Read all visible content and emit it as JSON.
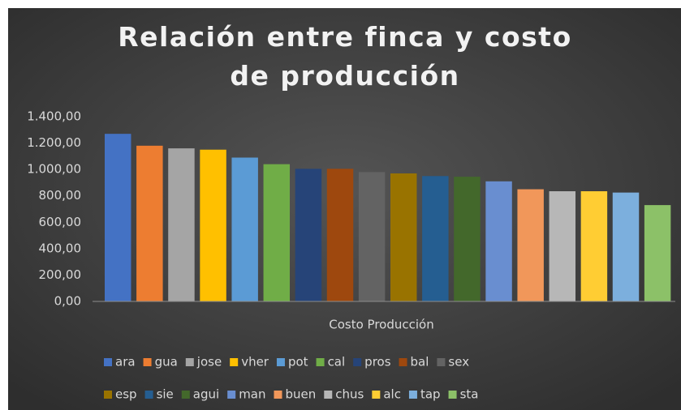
{
  "chart_data": {
    "type": "bar",
    "title": "Relación entre finca y costo de producción",
    "categories": [
      "Costo Producción"
    ],
    "series": [
      {
        "name": "ara",
        "color": "#4472c4",
        "values": [
          1270
        ]
      },
      {
        "name": "gua",
        "color": "#ed7d31",
        "values": [
          1180
        ]
      },
      {
        "name": "jose",
        "color": "#a5a5a5",
        "values": [
          1160
        ]
      },
      {
        "name": "vher",
        "color": "#ffc000",
        "values": [
          1150
        ]
      },
      {
        "name": "pot",
        "color": "#5b9bd5",
        "values": [
          1090
        ]
      },
      {
        "name": "cal",
        "color": "#70ad47",
        "values": [
          1040
        ]
      },
      {
        "name": "pros",
        "color": "#264478",
        "values": [
          1005
        ]
      },
      {
        "name": "bal",
        "color": "#9e480e",
        "values": [
          1005
        ]
      },
      {
        "name": "sex",
        "color": "#636363",
        "values": [
          980
        ]
      },
      {
        "name": "esp",
        "color": "#997300",
        "values": [
          970
        ]
      },
      {
        "name": "sie",
        "color": "#255e91",
        "values": [
          950
        ]
      },
      {
        "name": "agui",
        "color": "#43682b",
        "values": [
          945
        ]
      },
      {
        "name": "man",
        "color": "#698ed0",
        "values": [
          910
        ]
      },
      {
        "name": "buen",
        "color": "#f1975a",
        "values": [
          850
        ]
      },
      {
        "name": "chus",
        "color": "#b7b7b7",
        "values": [
          835
        ]
      },
      {
        "name": "alc",
        "color": "#ffcd33",
        "values": [
          835
        ]
      },
      {
        "name": "tap",
        "color": "#7cafdd",
        "values": [
          825
        ]
      },
      {
        "name": "sta",
        "color": "#8cc168",
        "values": [
          730
        ]
      }
    ],
    "ylim": [
      0,
      1400
    ],
    "yticks": [
      {
        "value": 0,
        "label": "0,00"
      },
      {
        "value": 200,
        "label": "200,00"
      },
      {
        "value": 400,
        "label": "400,00"
      },
      {
        "value": 600,
        "label": "600,00"
      },
      {
        "value": 800,
        "label": "800,00"
      },
      {
        "value": 1000,
        "label": "1.000,00"
      },
      {
        "value": 1200,
        "label": "1.200,00"
      },
      {
        "value": 1400,
        "label": "1.400,00"
      }
    ],
    "grid": false,
    "legend": "bottom"
  }
}
